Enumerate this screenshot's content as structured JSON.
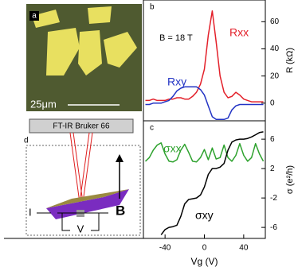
{
  "panels": {
    "a": {
      "label": "a",
      "scale": "25μm"
    },
    "d": {
      "label": "d",
      "instrument": "FT-IR  Bruker 66",
      "current": "I",
      "voltage": "V",
      "field": "B"
    }
  },
  "chart_data": [
    {
      "type": "line",
      "label": "b",
      "annotation": "B = 18 T",
      "ylabel": "R (kΩ)",
      "x": [
        -60,
        -56,
        -52,
        -48,
        -44,
        -40,
        -36,
        -32,
        -28,
        -24,
        -20,
        -16,
        -12,
        -8,
        -4,
        0,
        4,
        8,
        12,
        16,
        20,
        24,
        28,
        32,
        36,
        40,
        44,
        48,
        52,
        56,
        60
      ],
      "xlim": [
        -62,
        62
      ],
      "ylim": [
        -13,
        76
      ],
      "yticks": [
        0,
        20,
        40,
        60
      ],
      "series": [
        {
          "name": "Rxx",
          "color": "#e3202a",
          "values": [
            2,
            2,
            3,
            2,
            2,
            2,
            3,
            3,
            4,
            4,
            3,
            3,
            5,
            8,
            14,
            25,
            50,
            68,
            45,
            20,
            8,
            4,
            5,
            8,
            6,
            3,
            2,
            1,
            1,
            1,
            1
          ]
        },
        {
          "name": "Rxy",
          "color": "#2233c4",
          "values": [
            -1,
            -1,
            0,
            0,
            0,
            1,
            2,
            5,
            9,
            11,
            12,
            12,
            12,
            12,
            10,
            6,
            -2,
            -10,
            -12,
            -12,
            -12,
            -11,
            -5,
            -2,
            -1,
            -1,
            -1,
            -1,
            -1,
            -1,
            -1
          ]
        }
      ]
    },
    {
      "type": "line",
      "label": "c",
      "ylabel": "σ (e²/h)",
      "xlabel": "Vg (V)",
      "x": [
        -60,
        -56,
        -52,
        -48,
        -44,
        -40,
        -36,
        -32,
        -28,
        -24,
        -20,
        -16,
        -12,
        -8,
        -4,
        0,
        4,
        8,
        12,
        16,
        20,
        24,
        28,
        32,
        36,
        40,
        44,
        48,
        52,
        56,
        60
      ],
      "xlim": [
        -62,
        62
      ],
      "xticks": [
        -40,
        0,
        40
      ],
      "ylim": [
        -7.5,
        8.5
      ],
      "yticks": [
        -6,
        -2,
        2,
        6
      ],
      "series": [
        {
          "name": "σxx",
          "color": "#2ea22e",
          "values": [
            3,
            3.5,
            4.5,
            5.2,
            5.5,
            4,
            3,
            2.9,
            3.2,
            4.5,
            5.3,
            4.2,
            3,
            2.9,
            3.5,
            4.6,
            3.2,
            4.8,
            3.3,
            3.5,
            5.2,
            3.5,
            3,
            3.8,
            5.4,
            3.8,
            3,
            3.5,
            5.4,
            4,
            3
          ]
        },
        {
          "name": "σxy",
          "color": "#000000",
          "values": [
            null,
            null,
            null,
            null,
            -7,
            -6.3,
            -6,
            -5.9,
            -5.7,
            -4.5,
            -2.8,
            -2.2,
            -2.1,
            -2,
            -1.6,
            -0.5,
            1.2,
            2,
            2,
            2.2,
            2.7,
            4.5,
            5.6,
            5.9,
            6,
            6,
            6.1,
            6.3,
            6.6,
            6.9,
            7
          ]
        }
      ]
    }
  ]
}
